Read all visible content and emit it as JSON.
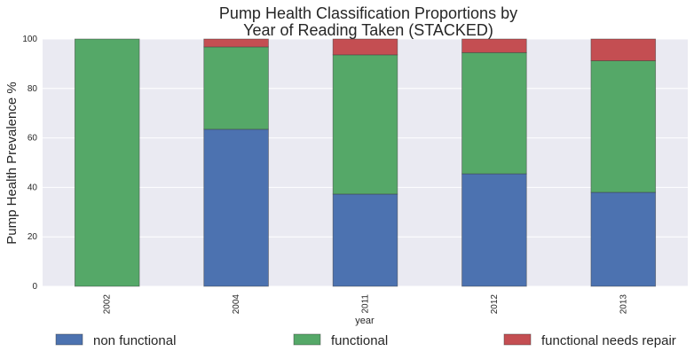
{
  "chart_data": {
    "type": "bar",
    "stacked": true,
    "title": [
      "Pump Health Classification Proportions by",
      "Year of Reading Taken (STACKED)"
    ],
    "xlabel": "year",
    "ylabel": "Pump Health Prevalence %",
    "ylim": [
      0,
      100
    ],
    "yticks": [
      0,
      20,
      40,
      60,
      80,
      100
    ],
    "categories": [
      "2002",
      "2004",
      "2011",
      "2012",
      "2013"
    ],
    "series": [
      {
        "name": "non functional",
        "color": "#4C72B0",
        "values": [
          0,
          63.5,
          37.3,
          45.5,
          38.0
        ]
      },
      {
        "name": "functional",
        "color": "#55A868",
        "values": [
          100,
          33.3,
          56.3,
          49.0,
          53.2
        ]
      },
      {
        "name": "functional needs repair",
        "color": "#C44E52",
        "values": [
          0,
          3.2,
          6.4,
          5.5,
          8.8
        ]
      }
    ],
    "grid": true,
    "legend": "bottom"
  }
}
